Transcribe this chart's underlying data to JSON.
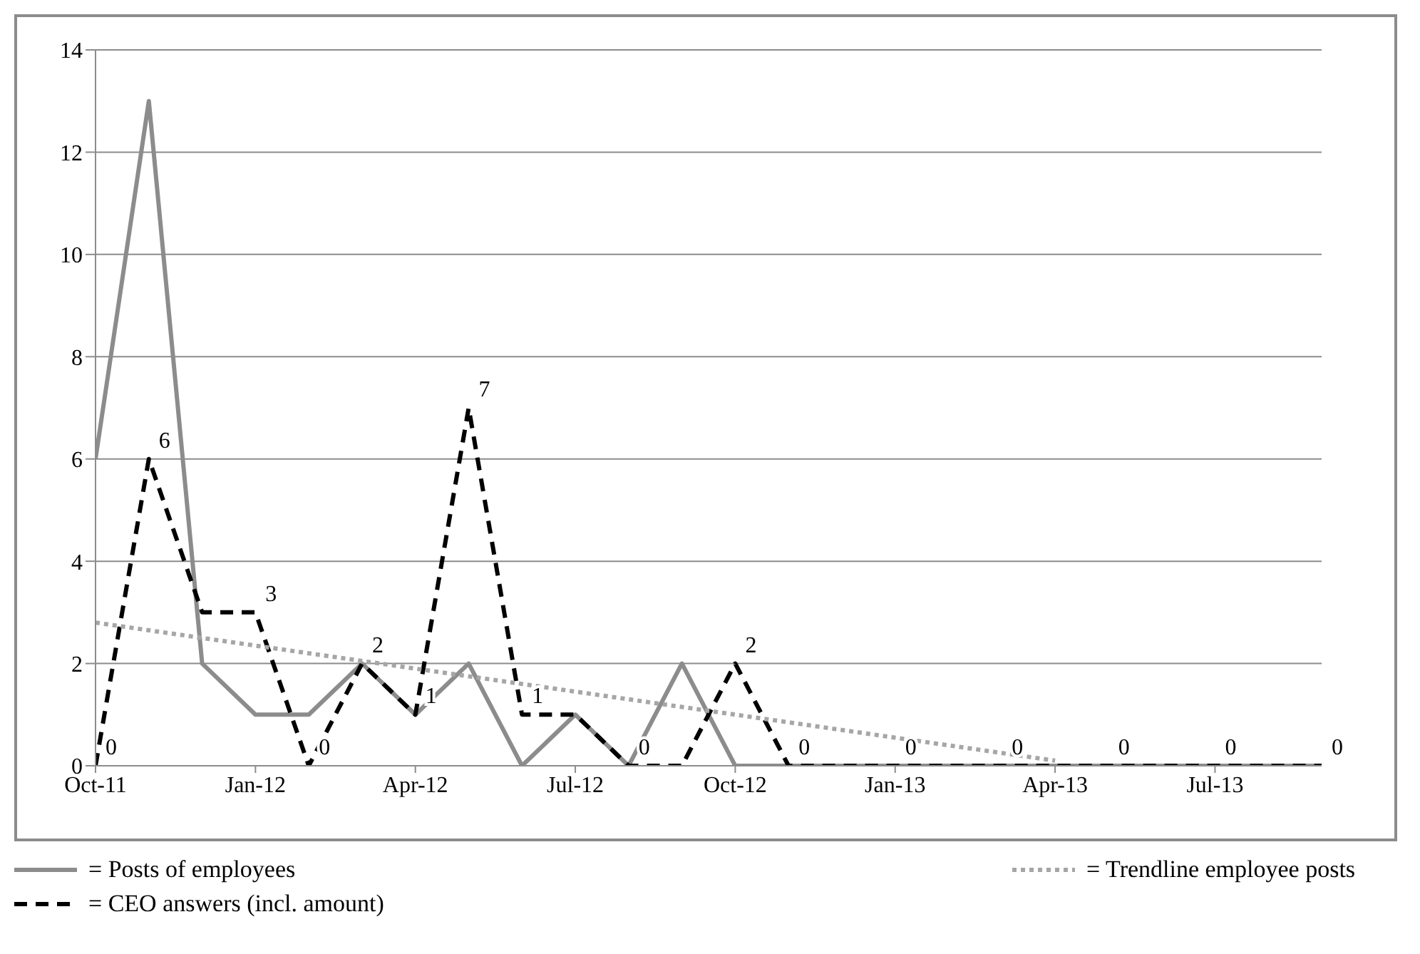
{
  "chart_data": {
    "type": "line",
    "categories": [
      "Oct-11",
      null,
      null,
      "Jan-12",
      null,
      null,
      "Apr-12",
      null,
      null,
      "Jul-12",
      null,
      null,
      "Oct-12",
      null,
      null,
      "Jan-13",
      null,
      null,
      "Apr-13",
      null,
      null,
      "Jul-13",
      null,
      null
    ],
    "series": [
      {
        "name": "= Posts of employees",
        "color": "#8c8c8c",
        "line_style": "solid",
        "values": [
          6,
          13,
          2,
          1,
          1,
          2,
          1,
          2,
          0,
          1,
          0,
          2,
          0,
          0,
          0,
          0,
          0,
          0,
          0,
          0,
          0,
          0,
          0,
          0
        ]
      },
      {
        "name": "= CEO answers (incl. amount)",
        "color": "#000000",
        "line_style": "dashed",
        "values": [
          0,
          6,
          3,
          3,
          0,
          2,
          1,
          7,
          1,
          1,
          0,
          0,
          2,
          0,
          0,
          0,
          0,
          0,
          0,
          0,
          0,
          0,
          0,
          0
        ],
        "value_labels": [
          "0",
          "6",
          null,
          "3",
          "0",
          "2",
          "1",
          "7",
          "1",
          null,
          "0",
          null,
          "2",
          "0",
          null,
          "0",
          null,
          "0",
          null,
          "0",
          null,
          "0",
          null,
          "0"
        ]
      },
      {
        "name": "= Trendline employee posts",
        "color": "#a6a6a6",
        "line_style": "dotted",
        "values": [
          2.8,
          null,
          null,
          null,
          null,
          null,
          null,
          null,
          null,
          null,
          null,
          null,
          null,
          null,
          null,
          null,
          null,
          null,
          0.1,
          null,
          null,
          null,
          null,
          null
        ]
      }
    ],
    "ylim": [
      0,
      14
    ],
    "yticks": [
      0,
      2,
      4,
      6,
      8,
      10,
      12,
      14
    ],
    "grid": "y",
    "legend": "bottom",
    "marker": "none"
  }
}
